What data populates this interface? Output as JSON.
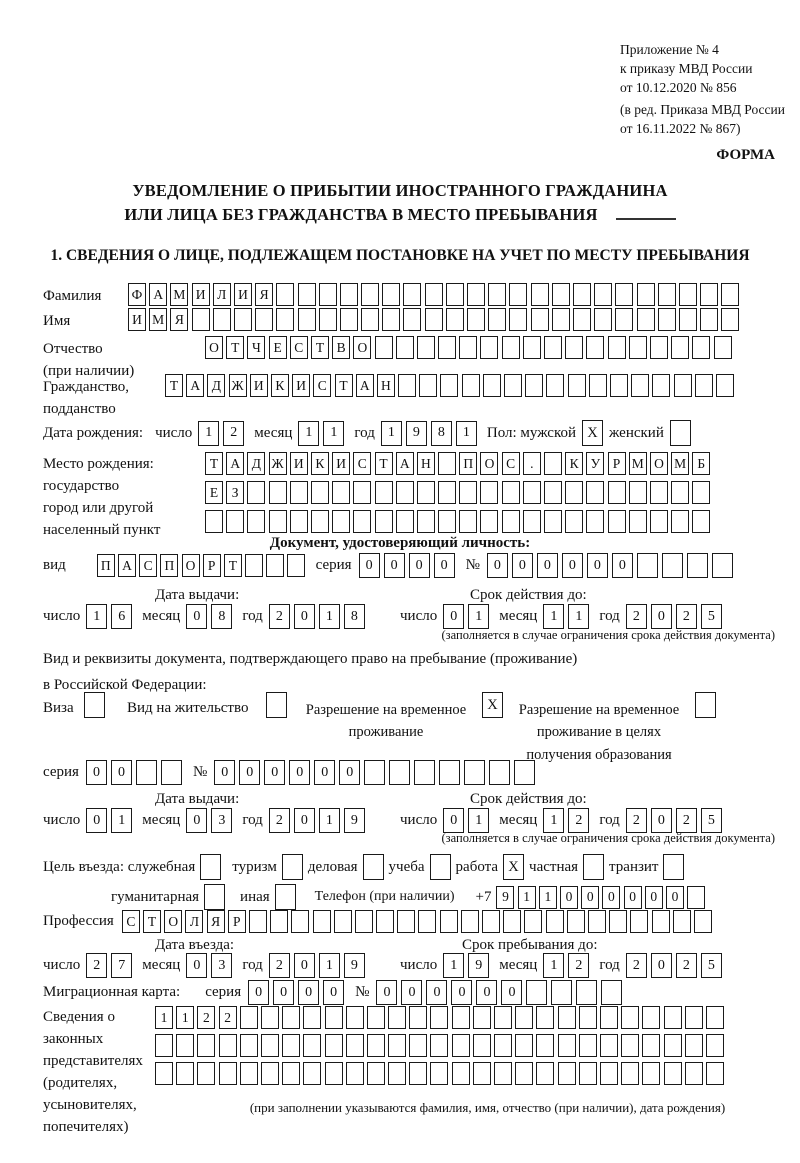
{
  "header": {
    "lines": [
      "Приложение № 4",
      "к приказу МВД России",
      "от 10.12.2020 № 856",
      "(в ред. Приказа МВД России",
      "от 16.11.2022 № 867)"
    ],
    "forma": "ФОРМА"
  },
  "title": {
    "line1": "УВЕДОМЛЕНИЕ О ПРИБЫТИИ ИНОСТРАННОГО ГРАЖДАНИНА",
    "line2": "ИЛИ ЛИЦА БЕЗ ГРАЖДАНСТВА В МЕСТО ПРЕБЫВАНИЯ"
  },
  "section1_heading": "1. СВЕДЕНИЯ О ЛИЦЕ, ПОДЛЕЖАЩЕМ ПОСТАНОВКЕ НА УЧЕТ ПО МЕСТУ ПРЕБЫВАНИЯ",
  "words": {
    "day": "число",
    "month": "месяц",
    "year": "год",
    "series": "серия",
    "no": "№"
  },
  "fields": {
    "surname": {
      "label": "Фамилия",
      "value": "ФАМИЛИЯ",
      "count": 29
    },
    "name": {
      "label": "Имя",
      "value": "ИМЯ",
      "count": 29
    },
    "patronymic": {
      "label": "Отчество",
      "label2": "(при наличии)",
      "value": "ОТЧЕСТВО",
      "count": 25
    },
    "citizenship": {
      "label": "Гражданство,",
      "label2": "подданство",
      "value": "ТАДЖИКИСТАН",
      "count": 27
    },
    "birthdate": {
      "label": "Дата рождения:",
      "day": {
        "value": "12",
        "count": 2
      },
      "month": {
        "value": "11",
        "count": 2
      },
      "year": {
        "value": "1981",
        "count": 4
      },
      "sex_label": "Пол: мужской",
      "male": "X",
      "female_label": "женский",
      "female": ""
    },
    "birthplace": {
      "label1": "Место рождения:",
      "label2": "государство",
      "label3": "город или другой",
      "label4": "населенный пункт",
      "row1": {
        "value": "ТАДЖИКИСТАН ПОС. КУРМОМБ",
        "count": 24
      },
      "row2": {
        "value": "ЕЗ",
        "count": 24
      },
      "row3": {
        "value": "",
        "count": 24
      }
    }
  },
  "identity_doc": {
    "heading": "Документ, удостоверяющий личность:",
    "kind_label": "вид",
    "kind": {
      "value": "ПАСПОРТ",
      "count": 10
    },
    "series": {
      "value": "0000",
      "count": 4
    },
    "number": {
      "value": "000000",
      "count": 10
    },
    "issue_label": "Дата выдачи:",
    "valid_label": "Срок действия до:",
    "issue": {
      "day": {
        "value": "16",
        "count": 2
      },
      "month": {
        "value": "08",
        "count": 2
      },
      "year": {
        "value": "2018",
        "count": 4
      }
    },
    "valid": {
      "day": {
        "value": "01",
        "count": 2
      },
      "month": {
        "value": "11",
        "count": 2
      },
      "year": {
        "value": "2025",
        "count": 4
      }
    },
    "note": "(заполняется в случае ограничения срока действия документа)"
  },
  "residence_doc": {
    "line1": "Вид и реквизиты документа, подтверждающего право на пребывание (проживание)",
    "line2": "в Российской Федерации:",
    "options": [
      {
        "label": "Виза",
        "checked": ""
      },
      {
        "label": "Вид на жительство",
        "checked": ""
      },
      {
        "label": "Разрешение на временное проживание",
        "checked": "X"
      },
      {
        "label": "Разрешение на временное проживание в целях получения образования",
        "checked": ""
      }
    ],
    "series": {
      "value": "00",
      "count": 4
    },
    "number": {
      "value": "000000",
      "count": 13
    },
    "issue_label": "Дата выдачи:",
    "valid_label": "Срок действия до:",
    "issue": {
      "day": {
        "value": "01",
        "count": 2
      },
      "month": {
        "value": "03",
        "count": 2
      },
      "year": {
        "value": "2019",
        "count": 4
      }
    },
    "valid": {
      "day": {
        "value": "01",
        "count": 2
      },
      "month": {
        "value": "12",
        "count": 2
      },
      "year": {
        "value": "2025",
        "count": 4
      }
    },
    "note": "(заполняется в случае ограничения срока действия документа)"
  },
  "purpose": {
    "label": "Цель въезда: служебная",
    "options_row1": [
      {
        "label": "туризм",
        "checked": ""
      },
      {
        "label": "деловая",
        "checked": ""
      },
      {
        "label": "учеба",
        "checked": ""
      },
      {
        "label": "работа",
        "checked": "X"
      },
      {
        "label": "частная",
        "checked": ""
      },
      {
        "label": "транзит",
        "checked": ""
      }
    ],
    "first_checked": "",
    "options_row2": [
      {
        "label": "гуманитарная",
        "checked": ""
      },
      {
        "label": "иная",
        "checked": ""
      }
    ],
    "phone_label": "Телефон (при наличии)",
    "phone_prefix": "+7",
    "phone": {
      "value": "911000000",
      "count": 10
    }
  },
  "profession": {
    "label": "Профессия",
    "value": "СТОЛЯР",
    "count": 28
  },
  "entry": {
    "date_label": "Дата въезда:",
    "until_label": "Срок пребывания до:",
    "date": {
      "day": {
        "value": "27",
        "count": 2
      },
      "month": {
        "value": "03",
        "count": 2
      },
      "year": {
        "value": "2019",
        "count": 4
      }
    },
    "until": {
      "day": {
        "value": "19",
        "count": 2
      },
      "month": {
        "value": "12",
        "count": 2
      },
      "year": {
        "value": "2025",
        "count": 4
      }
    }
  },
  "migration_card": {
    "label": "Миграционная карта:",
    "series": {
      "value": "0000",
      "count": 4
    },
    "number": {
      "value": "000000",
      "count": 10
    }
  },
  "representatives": {
    "label_lines": [
      "Сведения о",
      "законных",
      "представителях",
      "(родителях,",
      "усыновителях,",
      "попечителях)"
    ],
    "rows": [
      {
        "value": "1122",
        "count": 27
      },
      {
        "value": "",
        "count": 27
      },
      {
        "value": "",
        "count": 27
      }
    ],
    "note": "(при заполнении указываются фамилия, имя, отчество (при наличии), дата рождения)"
  }
}
